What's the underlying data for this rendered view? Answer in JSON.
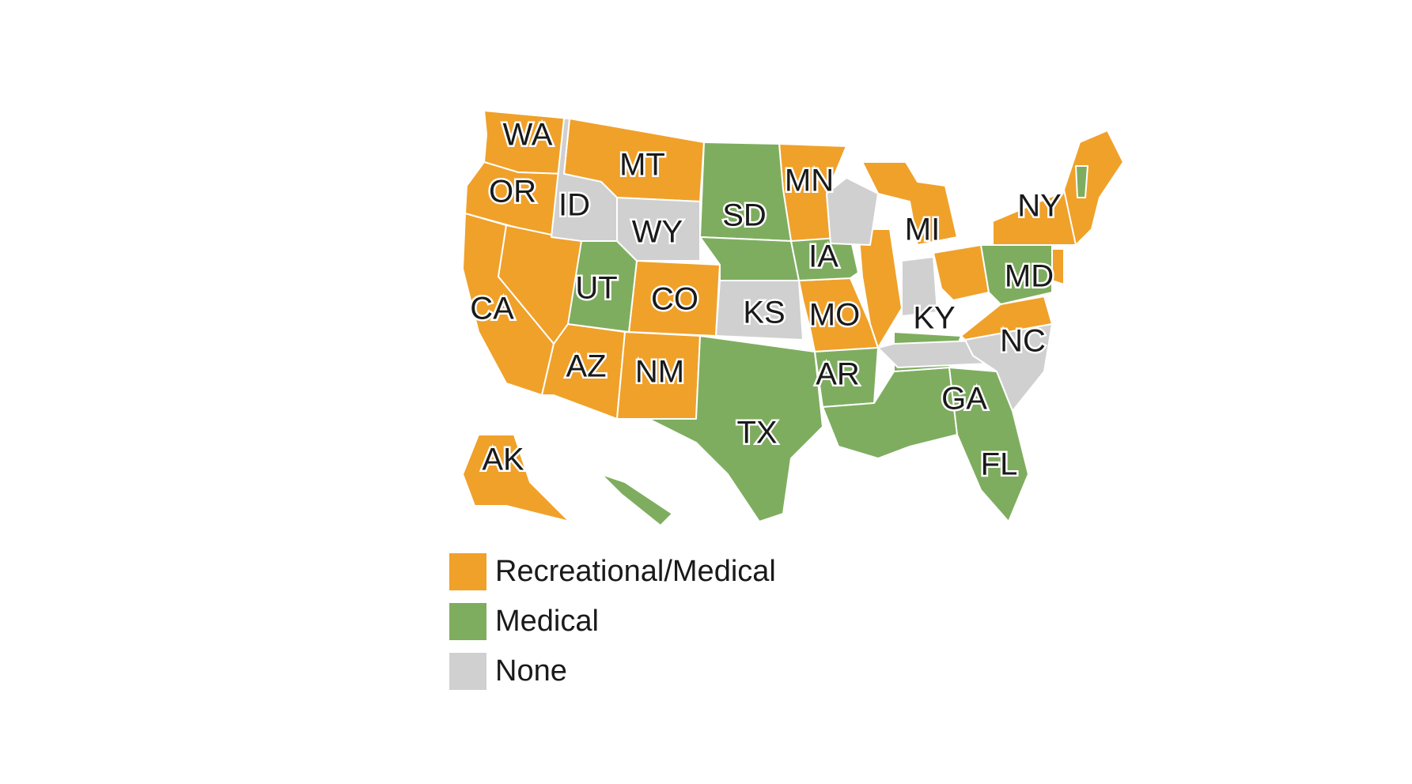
{
  "colors": {
    "recreational_medical": "#f0a12a",
    "medical": "#7ead5f",
    "none": "#d0d0d0"
  },
  "legend": [
    {
      "label": "Recreational/Medical",
      "color": "#f0a12a"
    },
    {
      "label": "Medical",
      "color": "#7ead5f"
    },
    {
      "label": "None",
      "color": "#d0d0d0"
    }
  ],
  "state_labels": {
    "WA": "WA",
    "OR": "OR",
    "CA": "CA",
    "AK": "AK",
    "ID": "ID",
    "MT": "MT",
    "WY": "WY",
    "UT": "UT",
    "CO": "CO",
    "AZ": "AZ",
    "NM": "NM",
    "SD": "SD",
    "KS": "KS",
    "TX": "TX",
    "MN": "MN",
    "IA": "IA",
    "MO": "MO",
    "AR": "AR",
    "MI": "MI",
    "KY": "KY",
    "GA": "GA",
    "FL": "FL",
    "NC": "NC",
    "MD": "MD",
    "NY": "NY"
  }
}
